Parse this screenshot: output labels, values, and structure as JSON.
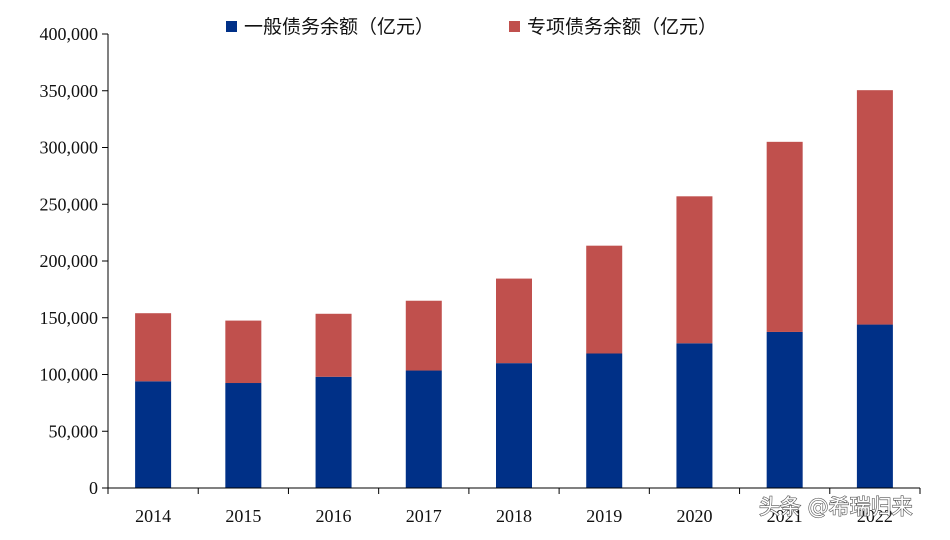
{
  "chart_data": {
    "type": "bar",
    "stacked": true,
    "title": "",
    "xlabel": "",
    "ylabel": "",
    "categories": [
      "2014",
      "2015",
      "2016",
      "2017",
      "2018",
      "2019",
      "2020",
      "2021",
      "2022"
    ],
    "series": [
      {
        "name": "一般债务余额（亿元）",
        "color": "#003087",
        "values": [
          94000,
          92500,
          98000,
          103500,
          110000,
          118500,
          127500,
          137500,
          144000
        ]
      },
      {
        "name": "专项债务余额（亿元）",
        "color": "#C0504D",
        "values": [
          60000,
          55000,
          55500,
          61500,
          74500,
          95000,
          129500,
          167500,
          206500
        ]
      }
    ],
    "ylim": [
      0,
      400000
    ],
    "yticks": [
      "0",
      "50,000",
      "100,000",
      "150,000",
      "200,000",
      "250,000",
      "300,000",
      "350,000",
      "400,000"
    ],
    "grid": false,
    "legend": "top"
  },
  "watermark": {
    "text": "头条 @希瑞归来"
  }
}
